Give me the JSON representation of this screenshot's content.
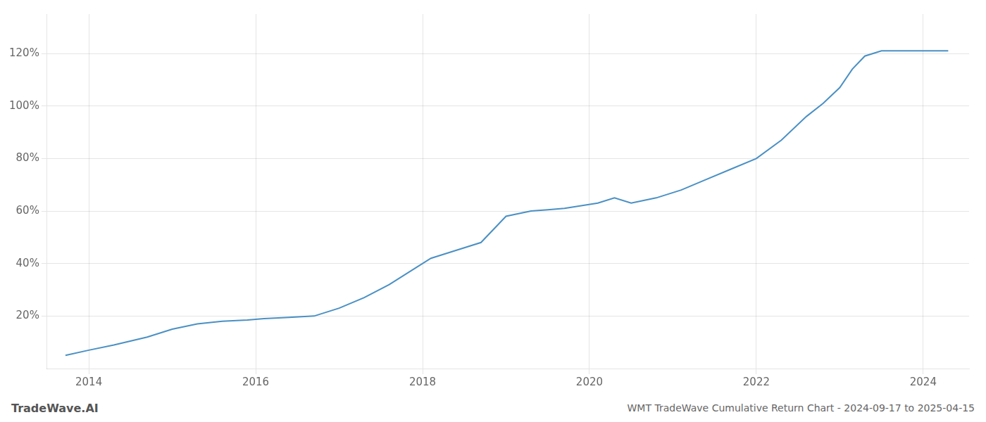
{
  "chart_data": {
    "type": "line",
    "title": "WMT TradeWave Cumulative Return Chart - 2024-09-17 to 2025-04-15",
    "annotations": [
      "TradeWave.AI"
    ],
    "color": "#4a90c4",
    "x": [
      2013.72,
      2014.0,
      2014.3,
      2014.7,
      2015.0,
      2015.3,
      2015.6,
      2015.9,
      2016.1,
      2016.4,
      2016.7,
      2017.0,
      2017.3,
      2017.6,
      2017.9,
      2018.1,
      2018.4,
      2018.7,
      2019.0,
      2019.3,
      2019.5,
      2019.7,
      2019.9,
      2020.1,
      2020.3,
      2020.5,
      2020.8,
      2021.1,
      2021.4,
      2021.7,
      2022.0,
      2022.3,
      2022.6,
      2022.8,
      2023.0,
      2023.15,
      2023.3,
      2023.5,
      2023.7,
      2023.9,
      2024.1,
      2024.3
    ],
    "values": [
      5,
      7,
      9,
      12,
      15,
      17,
      18,
      18.5,
      19,
      19.5,
      20,
      23,
      27,
      32,
      38,
      42,
      45,
      48,
      58,
      60,
      60.5,
      61,
      62,
      63,
      65,
      63,
      65,
      68,
      72,
      76,
      80,
      87,
      96,
      101,
      107,
      114,
      119,
      121,
      121,
      121,
      121,
      121
    ],
    "xlim": [
      2013.5,
      2024.55
    ],
    "ylim": [
      0,
      135
    ],
    "xticks": [
      2014,
      2016,
      2018,
      2020,
      2022,
      2024
    ],
    "yticks": [
      {
        "value": 20,
        "label": "20%"
      },
      {
        "value": 40,
        "label": "40%"
      },
      {
        "value": 60,
        "label": "60%"
      },
      {
        "value": 80,
        "label": "80%"
      },
      {
        "value": 100,
        "label": "100%"
      },
      {
        "value": 120,
        "label": "120%"
      }
    ],
    "grid": true
  }
}
